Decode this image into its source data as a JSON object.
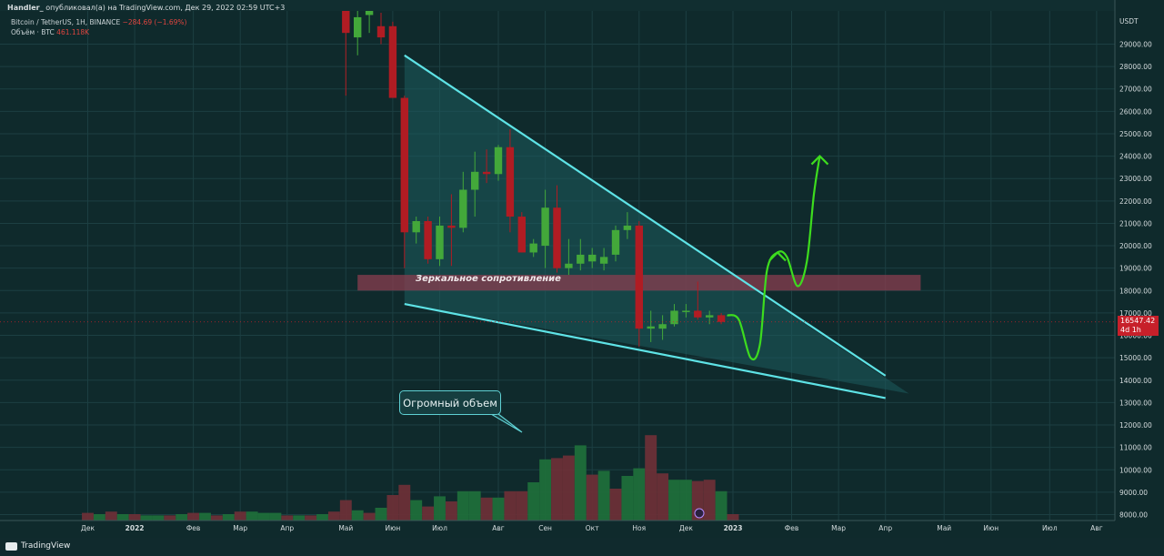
{
  "header": {
    "author": "Handler_",
    "published_text": "опубликовал(а) на TradingView.com, Дек 29, 2022 02:59 UTC+3"
  },
  "legend": {
    "symbol_line": "Bitcoin / TetherUS, 1Н, BINANCE",
    "change": "−284.69 (−1.69%)",
    "volume_label": "Объём · BTC",
    "volume_value": "461.118K"
  },
  "annotations": {
    "callout_text": "Огромный объем",
    "zone_label": "Зеркальное сопротивление"
  },
  "price_tag": {
    "price": "16547.42",
    "countdown": "4d 1h"
  },
  "footer": {
    "brand": "TradingView"
  },
  "colors": {
    "background": "#0f2a2c",
    "up": "#43a83a",
    "down": "#b01c23",
    "trendline": "#5ee3e6",
    "triangle_fill": "#1d5b5e",
    "zone": "#8a3e4f",
    "forecast": "#3ddc1e"
  },
  "chart_data": {
    "type": "candlestick",
    "currency_label": "USDT",
    "ylim": [
      7500,
      30300
    ],
    "y_ticks": [
      8000,
      9000,
      10000,
      11000,
      12000,
      13000,
      14000,
      15000,
      16000,
      17000,
      18000,
      19000,
      20000,
      21000,
      22000,
      23000,
      24000,
      25000,
      26000,
      27000,
      28000,
      29000
    ],
    "y_tick_labels": [
      "8000.00",
      "9000.00",
      "10000.00",
      "11000.00",
      "12000.00",
      "13000.00",
      "14000.00",
      "15000.00",
      "16000.00",
      "17000.00",
      "18000.00",
      "19000.00",
      "20000.00",
      "21000.00",
      "22000.00",
      "23000.00",
      "24000.00",
      "25000.00",
      "26000.00",
      "27000.00",
      "28000.00",
      "29000.00"
    ],
    "x_axis_months": [
      {
        "label": "Дек",
        "i": -45
      },
      {
        "label": "2022",
        "i": -41
      },
      {
        "label": "Фев",
        "i": -36
      },
      {
        "label": "Мар",
        "i": -32
      },
      {
        "label": "Апр",
        "i": -28
      },
      {
        "label": "Май",
        "i": -23
      },
      {
        "label": "Июн",
        "i": -19
      },
      {
        "label": "Июл",
        "i": -15
      },
      {
        "label": "Авг",
        "i": -10
      },
      {
        "label": "Сен",
        "i": -6
      },
      {
        "label": "Окт",
        "i": -2
      },
      {
        "label": "Ноя",
        "i": 2
      },
      {
        "label": "Дек",
        "i": 6
      },
      {
        "label": "2023",
        "i": 10
      },
      {
        "label": "Фев",
        "i": 15
      },
      {
        "label": "Мар",
        "i": 19
      },
      {
        "label": "Апр",
        "i": 23
      },
      {
        "label": "Май",
        "i": 28
      },
      {
        "label": "Июн",
        "i": 32
      },
      {
        "label": "Июл",
        "i": 37
      },
      {
        "label": "Авг",
        "i": 41
      }
    ],
    "candles": [
      {
        "i": -23,
        "o": 30500,
        "h": 31000,
        "l": 26700,
        "c": 29500
      },
      {
        "i": -22,
        "o": 29300,
        "h": 30800,
        "l": 28500,
        "c": 30200
      },
      {
        "i": -21,
        "o": 30300,
        "h": 31000,
        "l": 29500,
        "c": 30600
      },
      {
        "i": -20,
        "o": 29800,
        "h": 30400,
        "l": 29000,
        "c": 29300
      },
      {
        "i": -19,
        "o": 29800,
        "h": 30000,
        "l": 26800,
        "c": 26600
      },
      {
        "i": -18,
        "o": 26600,
        "h": 26700,
        "l": 19000,
        "c": 20600
      },
      {
        "i": -17,
        "o": 20600,
        "h": 21300,
        "l": 20100,
        "c": 21100
      },
      {
        "i": -16,
        "o": 21100,
        "h": 21300,
        "l": 19200,
        "c": 19400
      },
      {
        "i": -15,
        "o": 19400,
        "h": 21300,
        "l": 19100,
        "c": 20900
      },
      {
        "i": -14,
        "o": 20900,
        "h": 22300,
        "l": 19100,
        "c": 20800
      },
      {
        "i": -13,
        "o": 20800,
        "h": 23300,
        "l": 20600,
        "c": 22500
      },
      {
        "i": -12,
        "o": 22500,
        "h": 24200,
        "l": 21300,
        "c": 23300
      },
      {
        "i": -11,
        "o": 23300,
        "h": 24300,
        "l": 22800,
        "c": 23200
      },
      {
        "i": -10,
        "o": 23200,
        "h": 24500,
        "l": 22900,
        "c": 24400
      },
      {
        "i": -9,
        "o": 24400,
        "h": 25200,
        "l": 20600,
        "c": 21300
      },
      {
        "i": -8,
        "o": 21300,
        "h": 21500,
        "l": 19700,
        "c": 19700
      },
      {
        "i": -7,
        "o": 19700,
        "h": 20300,
        "l": 19500,
        "c": 20100
      },
      {
        "i": -6,
        "o": 20000,
        "h": 22500,
        "l": 19000,
        "c": 21700
      },
      {
        "i": -5,
        "o": 21700,
        "h": 22700,
        "l": 18800,
        "c": 19000
      },
      {
        "i": -4,
        "o": 19000,
        "h": 20300,
        "l": 18700,
        "c": 19200
      },
      {
        "i": -3,
        "o": 19200,
        "h": 20300,
        "l": 18900,
        "c": 19600
      },
      {
        "i": -2,
        "o": 19300,
        "h": 19900,
        "l": 19000,
        "c": 19600
      },
      {
        "i": -1,
        "o": 19200,
        "h": 19900,
        "l": 18900,
        "c": 19500
      },
      {
        "i": 0,
        "o": 19600,
        "h": 20900,
        "l": 19300,
        "c": 20700
      },
      {
        "i": 1,
        "o": 20700,
        "h": 21500,
        "l": 20300,
        "c": 20900
      },
      {
        "i": 2,
        "o": 20900,
        "h": 21100,
        "l": 15500,
        "c": 16300
      },
      {
        "i": 3,
        "o": 16300,
        "h": 17100,
        "l": 15700,
        "c": 16400
      },
      {
        "i": 4,
        "o": 16300,
        "h": 16900,
        "l": 15800,
        "c": 16500
      },
      {
        "i": 5,
        "o": 16500,
        "h": 17400,
        "l": 16400,
        "c": 17100
      },
      {
        "i": 6,
        "o": 17100,
        "h": 17400,
        "l": 16800,
        "c": 17100
      },
      {
        "i": 7,
        "o": 17100,
        "h": 18400,
        "l": 16700,
        "c": 16800
      },
      {
        "i": 8,
        "o": 16800,
        "h": 17100,
        "l": 16500,
        "c": 16900
      },
      {
        "i": 9,
        "o": 16900,
        "h": 17000,
        "l": 16500,
        "c": 16600
      }
    ],
    "volume_series": {
      "name": "Объём · BTC",
      "max": 100,
      "values": [
        {
          "i": -45,
          "v": 6,
          "dir": "down"
        },
        {
          "i": -44,
          "v": 5,
          "dir": "up"
        },
        {
          "i": -43,
          "v": 7,
          "dir": "down"
        },
        {
          "i": -42,
          "v": 5,
          "dir": "up"
        },
        {
          "i": -41,
          "v": 5,
          "dir": "down"
        },
        {
          "i": -40,
          "v": 4,
          "dir": "up"
        },
        {
          "i": -39,
          "v": 4,
          "dir": "up"
        },
        {
          "i": -38,
          "v": 4,
          "dir": "down"
        },
        {
          "i": -37,
          "v": 5,
          "dir": "up"
        },
        {
          "i": -36,
          "v": 6,
          "dir": "down"
        },
        {
          "i": -35,
          "v": 6,
          "dir": "up"
        },
        {
          "i": -34,
          "v": 4,
          "dir": "down"
        },
        {
          "i": -33,
          "v": 5,
          "dir": "up"
        },
        {
          "i": -32,
          "v": 7,
          "dir": "down"
        },
        {
          "i": -31,
          "v": 7,
          "dir": "up"
        },
        {
          "i": -30,
          "v": 6,
          "dir": "up"
        },
        {
          "i": -29,
          "v": 6,
          "dir": "up"
        },
        {
          "i": -28,
          "v": 4,
          "dir": "down"
        },
        {
          "i": -27,
          "v": 4,
          "dir": "up"
        },
        {
          "i": -26,
          "v": 4,
          "dir": "down"
        },
        {
          "i": -25,
          "v": 5,
          "dir": "up"
        },
        {
          "i": -24,
          "v": 7,
          "dir": "down"
        },
        {
          "i": -23,
          "v": 16,
          "dir": "down"
        },
        {
          "i": -22,
          "v": 8,
          "dir": "up"
        },
        {
          "i": -21,
          "v": 6,
          "dir": "down"
        },
        {
          "i": -20,
          "v": 10,
          "dir": "up"
        },
        {
          "i": -19,
          "v": 20,
          "dir": "down"
        },
        {
          "i": -18,
          "v": 28,
          "dir": "down"
        },
        {
          "i": -17,
          "v": 16,
          "dir": "up"
        },
        {
          "i": -16,
          "v": 11,
          "dir": "down"
        },
        {
          "i": -15,
          "v": 19,
          "dir": "up"
        },
        {
          "i": -14,
          "v": 15,
          "dir": "down"
        },
        {
          "i": -13,
          "v": 23,
          "dir": "up"
        },
        {
          "i": -12,
          "v": 23,
          "dir": "up"
        },
        {
          "i": -11,
          "v": 18,
          "dir": "down"
        },
        {
          "i": -10,
          "v": 18,
          "dir": "up"
        },
        {
          "i": -9,
          "v": 23,
          "dir": "down"
        },
        {
          "i": -8,
          "v": 23,
          "dir": "down"
        },
        {
          "i": -7,
          "v": 30,
          "dir": "up"
        },
        {
          "i": -6,
          "v": 48,
          "dir": "up"
        },
        {
          "i": -5,
          "v": 49,
          "dir": "down"
        },
        {
          "i": -4,
          "v": 51,
          "dir": "down"
        },
        {
          "i": -3,
          "v": 59,
          "dir": "up"
        },
        {
          "i": -2,
          "v": 36,
          "dir": "down"
        },
        {
          "i": -1,
          "v": 39,
          "dir": "up"
        },
        {
          "i": 0,
          "v": 25,
          "dir": "down"
        },
        {
          "i": 1,
          "v": 35,
          "dir": "up"
        },
        {
          "i": 2,
          "v": 41,
          "dir": "up"
        },
        {
          "i": 3,
          "v": 67,
          "dir": "down"
        },
        {
          "i": 4,
          "v": 37,
          "dir": "down"
        },
        {
          "i": 5,
          "v": 32,
          "dir": "up"
        },
        {
          "i": 6,
          "v": 32,
          "dir": "up"
        },
        {
          "i": 7,
          "v": 31,
          "dir": "down"
        },
        {
          "i": 8,
          "v": 32,
          "dir": "down"
        },
        {
          "i": 9,
          "v": 23,
          "dir": "up"
        },
        {
          "i": 10,
          "v": 5,
          "dir": "down"
        }
      ]
    },
    "drawings": {
      "resistance_zone": {
        "i_start": -22,
        "i_end": 26,
        "y_low": 18000,
        "y_high": 18700
      },
      "upper_trendline": [
        {
          "i": -18,
          "y": 28500
        },
        {
          "i": 23,
          "y": 14200
        }
      ],
      "lower_trendline": [
        {
          "i": -18,
          "y": 17400
        },
        {
          "i": 23,
          "y": 13200
        }
      ],
      "triangle_tip": {
        "i": 25,
        "y": 13400
      },
      "forecast_path": [
        {
          "i": 9.5,
          "y": 16900
        },
        {
          "i": 10.5,
          "y": 16700
        },
        {
          "i": 11.5,
          "y": 15000
        },
        {
          "i": 12.3,
          "y": 15600
        },
        {
          "i": 12.9,
          "y": 18900
        },
        {
          "i": 13.8,
          "y": 19700
        },
        {
          "i": 14.6,
          "y": 19500
        },
        {
          "i": 15.5,
          "y": 18200
        },
        {
          "i": 16.3,
          "y": 19300
        },
        {
          "i": 16.9,
          "y": 22300
        },
        {
          "i": 17.4,
          "y": 24000
        }
      ]
    }
  }
}
